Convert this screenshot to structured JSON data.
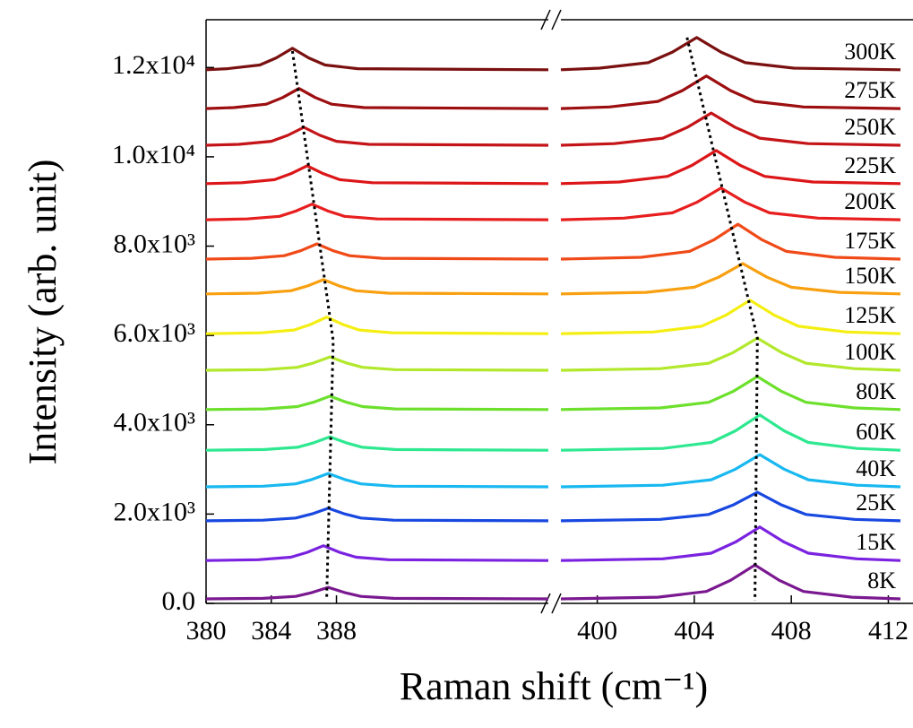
{
  "chart_data": {
    "type": "line",
    "xlabel": "Raman shift (cm⁻¹)",
    "ylabel": "Intensity (arb. unit)",
    "ylim": [
      0,
      13070
    ],
    "yticks": [
      {
        "value": 0,
        "label": "0.0"
      },
      {
        "value": 2000,
        "label": "2.0x10³"
      },
      {
        "value": 4000,
        "label": "4.0x10³"
      },
      {
        "value": 6000,
        "label": "6.0x10³"
      },
      {
        "value": 8000,
        "label": "8.0x10³"
      },
      {
        "value": 10000,
        "label": "1.0x10⁴"
      },
      {
        "value": 12000,
        "label": "1.2x10⁴"
      }
    ],
    "panels": [
      {
        "xlim": [
          380,
          401
        ],
        "xticks": [
          380,
          384,
          388
        ],
        "trend": {
          "x": [
            385.3,
            387.8,
            387.4
          ],
          "y": [
            12370,
            5880,
            100
          ]
        }
      },
      {
        "xlim": [
          398.5,
          412.5
        ],
        "xticks": [
          400,
          404,
          408,
          412
        ],
        "trend": {
          "x": [
            403.7,
            406.6,
            406.5
          ],
          "y": [
            12670,
            5940,
            60
          ]
        }
      }
    ],
    "series": [
      {
        "name": "300K",
        "color": "#7a1010",
        "x": [
          [
            380,
            381.3,
            383.3,
            384.3,
            385.3,
            386.3,
            387.3,
            389.3,
            401
          ],
          [
            398.5,
            400.1,
            402.1,
            403.1,
            404.1,
            405.1,
            406.1,
            408.1,
            412.5
          ]
        ],
        "values": [
          [
            11950,
            11974,
            12056,
            12214,
            12430,
            12214,
            12056,
            11974,
            11950
          ],
          [
            11950,
            11986,
            12108,
            12346,
            12670,
            12346,
            12108,
            11986,
            11950
          ]
        ]
      },
      {
        "name": "275K",
        "color": "#9c0e10",
        "x": [
          [
            380,
            381.7,
            383.7,
            384.7,
            385.7,
            386.7,
            387.7,
            389.7,
            401
          ],
          [
            398.5,
            400.5,
            402.5,
            403.5,
            404.5,
            405.5,
            406.5,
            408.5,
            412.5
          ]
        ],
        "values": [
          [
            11080,
            11103,
            11179,
            11328,
            11530,
            11328,
            11179,
            11103,
            11080
          ],
          [
            11080,
            11117,
            11241,
            11482,
            11810,
            11482,
            11241,
            11117,
            11080
          ]
        ]
      },
      {
        "name": "250K",
        "color": "#c41418",
        "x": [
          [
            380,
            382,
            384,
            385,
            386,
            387,
            388,
            390,
            401
          ],
          [
            398.5,
            400.7,
            402.7,
            403.7,
            404.7,
            405.7,
            406.7,
            408.7,
            412.5
          ]
        ],
        "values": [
          [
            10260,
            10280,
            10348,
            10480,
            10660,
            10480,
            10348,
            10280,
            10260
          ],
          [
            10260,
            10296,
            10418,
            10656,
            10980,
            10656,
            10418,
            10296,
            10260
          ]
        ]
      },
      {
        "name": "225K",
        "color": "#dc1618",
        "x": [
          [
            380,
            382.2,
            384.2,
            385.2,
            386.2,
            387.2,
            388.2,
            390.2,
            401
          ],
          [
            398.5,
            400.9,
            402.9,
            403.9,
            404.9,
            405.9,
            406.9,
            408.9,
            412.5
          ]
        ],
        "values": [
          [
            9400,
            9420,
            9488,
            9620,
            9800,
            9620,
            9488,
            9420,
            9400
          ],
          [
            9400,
            9437,
            9563,
            9807,
            10140,
            9807,
            9563,
            9437,
            9400
          ]
        ]
      },
      {
        "name": "200K",
        "color": "#e81e1e",
        "x": [
          [
            380,
            382.5,
            384.5,
            385.5,
            386.5,
            387.5,
            388.5,
            390.5,
            401
          ],
          [
            398.5,
            401.1,
            403.1,
            404.1,
            405.1,
            406.1,
            407.1,
            409.1,
            412.5
          ]
        ],
        "values": [
          [
            8590,
            8608,
            8667,
            8783,
            8940,
            8783,
            8667,
            8608,
            8590
          ],
          [
            8590,
            8626,
            8746,
            8981,
            9300,
            8981,
            8746,
            8626,
            8590
          ]
        ]
      },
      {
        "name": "175K",
        "color": "#f04a18",
        "x": [
          [
            380,
            382.8,
            384.8,
            385.8,
            386.8,
            387.8,
            388.8,
            390.8,
            401
          ],
          [
            398.5,
            401.8,
            403.8,
            404.8,
            405.8,
            406.8,
            407.8,
            409.8,
            412.5
          ]
        ],
        "values": [
          [
            7710,
            7727,
            7785,
            7897,
            8050,
            7897,
            7785,
            7727,
            7710
          ],
          [
            7710,
            7749,
            7882,
            8139,
            8490,
            8139,
            7882,
            7749,
            7710
          ]
        ]
      },
      {
        "name": "150K",
        "color": "#f8a010",
        "x": [
          [
            380,
            383.2,
            385.2,
            386.2,
            387.2,
            388.2,
            389.2,
            391.2,
            401
          ],
          [
            398.5,
            402,
            404,
            405,
            406,
            407,
            408,
            410,
            412.5
          ]
        ],
        "values": [
          [
            6930,
            6946,
            7000,
            7106,
            7250,
            7106,
            7000,
            6946,
            6930
          ],
          [
            6930,
            6964,
            7080,
            7304,
            7610,
            7304,
            7080,
            6964,
            6930
          ]
        ]
      },
      {
        "name": "125K",
        "color": "#f4ee12",
        "x": [
          [
            380,
            383.4,
            385.4,
            386.4,
            387.4,
            388.4,
            389.4,
            391.4,
            401
          ],
          [
            398.5,
            402.3,
            404.3,
            405.3,
            406.3,
            407.3,
            408.3,
            410.3,
            412.5
          ]
        ],
        "values": [
          [
            6040,
            6059,
            6121,
            6244,
            6410,
            6244,
            6121,
            6059,
            6040
          ],
          [
            6040,
            6078,
            6205,
            6453,
            6790,
            6453,
            6205,
            6078,
            6040
          ]
        ]
      },
      {
        "name": "100K",
        "color": "#b2e82c",
        "x": [
          [
            380,
            383.6,
            385.6,
            386.6,
            387.6,
            388.6,
            389.6,
            391.6,
            401
          ],
          [
            398.5,
            402.6,
            404.6,
            405.6,
            406.6,
            407.6,
            408.6,
            410.6,
            412.5
          ]
        ],
        "values": [
          [
            5220,
            5235,
            5286,
            5385,
            5520,
            5385,
            5286,
            5235,
            5220
          ],
          [
            5220,
            5256,
            5378,
            5616,
            5940,
            5616,
            5378,
            5256,
            5220
          ]
        ]
      },
      {
        "name": "80K",
        "color": "#6ce02c",
        "x": [
          [
            380,
            383.6,
            385.6,
            386.6,
            387.6,
            388.6,
            389.6,
            391.6,
            401
          ],
          [
            398.5,
            402.6,
            404.6,
            405.6,
            406.6,
            407.6,
            408.6,
            410.6,
            412.5
          ]
        ],
        "values": [
          [
            4340,
            4355,
            4406,
            4505,
            4640,
            4505,
            4406,
            4355,
            4340
          ],
          [
            4340,
            4377,
            4503,
            4747,
            5080,
            4747,
            4503,
            4377,
            4340
          ]
        ]
      },
      {
        "name": "60K",
        "color": "#2ee890",
        "x": [
          [
            380,
            383.6,
            385.6,
            386.6,
            387.6,
            388.6,
            389.6,
            391.6,
            401
          ],
          [
            398.5,
            402.7,
            404.7,
            405.7,
            406.7,
            407.7,
            408.7,
            410.7,
            412.5
          ]
        ],
        "values": [
          [
            3430,
            3445,
            3496,
            3595,
            3730,
            3595,
            3496,
            3445,
            3430
          ],
          [
            3430,
            3470,
            3604,
            3865,
            4220,
            3865,
            3604,
            3470,
            3430
          ]
        ]
      },
      {
        "name": "40K",
        "color": "#18b8f0",
        "x": [
          [
            380,
            383.5,
            385.5,
            386.5,
            387.5,
            388.5,
            389.5,
            391.5,
            401
          ],
          [
            398.5,
            402.7,
            404.7,
            405.7,
            406.7,
            407.7,
            408.7,
            410.7,
            412.5
          ]
        ],
        "values": [
          [
            2610,
            2625,
            2676,
            2775,
            2910,
            2775,
            2676,
            2625,
            2610
          ],
          [
            2610,
            2646,
            2768,
            3006,
            3330,
            3006,
            2768,
            2646,
            2610
          ]
        ]
      },
      {
        "name": "25K",
        "color": "#1848e0",
        "x": [
          [
            380,
            383.5,
            385.5,
            386.5,
            387.5,
            388.5,
            389.5,
            391.5,
            401
          ],
          [
            398.5,
            402.6,
            404.6,
            405.6,
            406.6,
            407.6,
            408.6,
            410.6,
            412.5
          ]
        ],
        "values": [
          [
            1850,
            1864,
            1912,
            2004,
            2130,
            2004,
            1912,
            1864,
            1850
          ],
          [
            1850,
            1882,
            1991,
            2202,
            2490,
            2202,
            1991,
            1882,
            1850
          ]
        ]
      },
      {
        "name": "15K",
        "color": "#7a22e0",
        "x": [
          [
            380,
            383.2,
            385.2,
            386.2,
            387.2,
            388.2,
            389.2,
            391.2,
            401
          ],
          [
            398.5,
            402.7,
            404.7,
            405.7,
            406.7,
            407.7,
            408.7,
            410.7,
            412.5
          ]
        ],
        "values": [
          [
            960,
            977,
            1033,
            1142,
            1290,
            1142,
            1033,
            977,
            960
          ],
          [
            960,
            998,
            1125,
            1373,
            1710,
            1373,
            1125,
            998,
            960
          ]
        ]
      },
      {
        "name": "8K",
        "color": "#7a1890",
        "x": [
          [
            380,
            383.5,
            385.5,
            386.5,
            387.5,
            388.5,
            389.5,
            391.5,
            401
          ],
          [
            398.5,
            402.5,
            404.5,
            405.5,
            406.5,
            407.5,
            408.5,
            410.5,
            412.5
          ]
        ],
        "values": [
          [
            100,
            113,
            157,
            243,
            360,
            243,
            157,
            113,
            100
          ],
          [
            100,
            138,
            267,
            518,
            860,
            518,
            267,
            138,
            100
          ]
        ]
      }
    ]
  }
}
